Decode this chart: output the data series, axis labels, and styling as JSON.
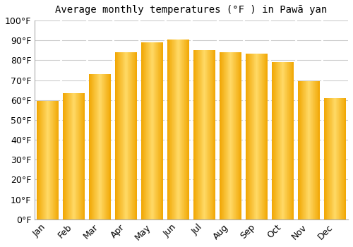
{
  "title": "Average monthly temperatures (°F ) in Pawā yan",
  "months": [
    "Jan",
    "Feb",
    "Mar",
    "Apr",
    "May",
    "Jun",
    "Jul",
    "Aug",
    "Sep",
    "Oct",
    "Nov",
    "Dec"
  ],
  "temperatures": [
    59.5,
    63.5,
    73,
    84,
    89,
    90.5,
    85,
    84,
    83.5,
    79,
    69.5,
    61
  ],
  "bar_color_center": "#FFD966",
  "bar_color_edge": "#F0A500",
  "bar_edge_color": "#FFFFFF",
  "ylim": [
    0,
    100
  ],
  "yticks": [
    0,
    10,
    20,
    30,
    40,
    50,
    60,
    70,
    80,
    90,
    100
  ],
  "ytick_labels": [
    "0°F",
    "10°F",
    "20°F",
    "30°F",
    "40°F",
    "50°F",
    "60°F",
    "70°F",
    "80°F",
    "90°F",
    "100°F"
  ],
  "background_color": "#FFFFFF",
  "title_fontsize": 10,
  "tick_fontsize": 9,
  "bar_width": 0.85,
  "grid_color": "#CCCCCC",
  "spine_color": "#AAAAAA"
}
